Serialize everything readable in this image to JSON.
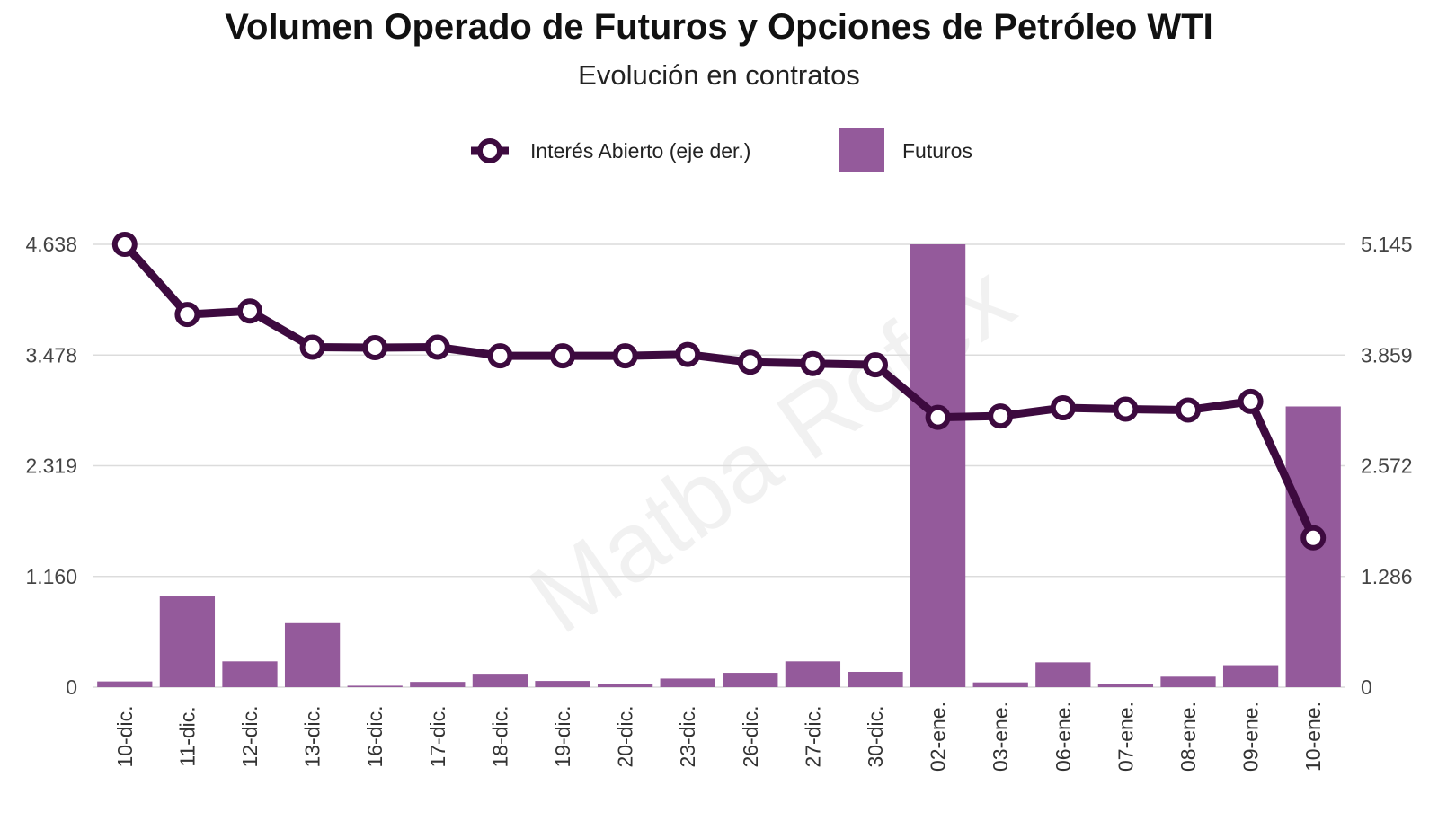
{
  "chart_data": {
    "type": "bar",
    "title": "Volumen Operado de Futuros y Opciones de Petróleo WTI",
    "subtitle": "Evolución en contratos",
    "watermark": "Matba Rofex",
    "categories": [
      "10-dic.",
      "11-dic.",
      "12-dic.",
      "13-dic.",
      "16-dic.",
      "17-dic.",
      "18-dic.",
      "19-dic.",
      "20-dic.",
      "23-dic.",
      "26-dic.",
      "27-dic.",
      "30-dic.",
      "02-ene.",
      "03-ene.",
      "06-ene.",
      "07-ene.",
      "08-ene.",
      "09-ene.",
      "10-ene."
    ],
    "series": [
      {
        "name": "Futuros",
        "type": "bar",
        "axis": "left",
        "color": "#945a9b",
        "values": [
          60,
          950,
          270,
          670,
          15,
          55,
          140,
          65,
          35,
          90,
          150,
          270,
          160,
          4638,
          50,
          260,
          30,
          110,
          230,
          2940
        ]
      },
      {
        "name": "Interés Abierto (eje der.)",
        "type": "line",
        "axis": "right",
        "color": "#3d0a3f",
        "values": [
          5145,
          4330,
          4370,
          3950,
          3945,
          3950,
          3850,
          3850,
          3850,
          3865,
          3775,
          3760,
          3745,
          3135,
          3150,
          3245,
          3230,
          3220,
          3320,
          1735
        ]
      }
    ],
    "yaxis_left": {
      "ticks": [
        "0",
        "1.160",
        "2.319",
        "3.478",
        "4.638"
      ],
      "ylim": [
        0,
        4638
      ]
    },
    "yaxis_right": {
      "ticks": [
        "0",
        "1.286",
        "2.572",
        "3.859",
        "5.145"
      ],
      "ylim": [
        0,
        5145
      ]
    },
    "legend": {
      "placement": "top-center"
    },
    "grid": true
  }
}
